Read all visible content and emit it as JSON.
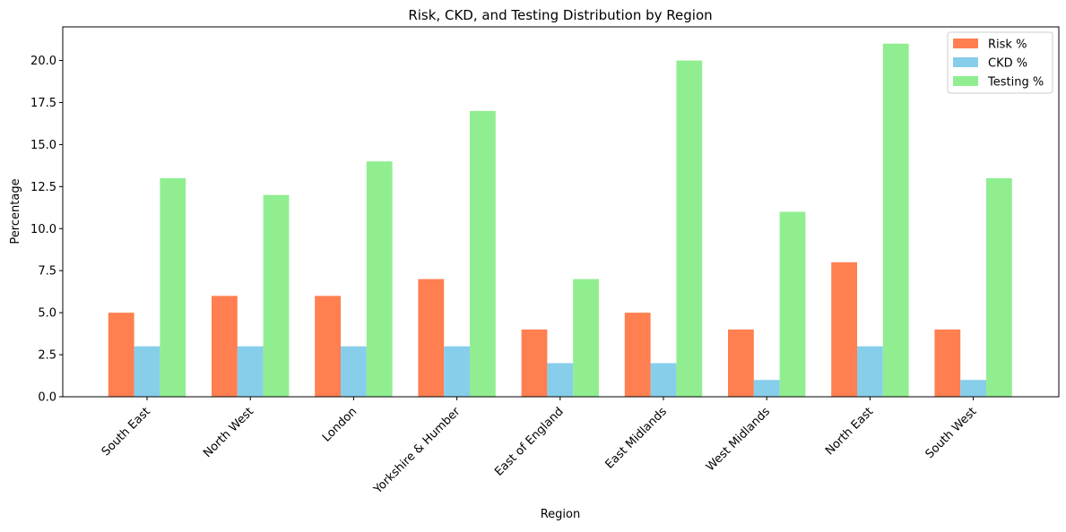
{
  "chart_data": {
    "type": "bar",
    "title": "Risk, CKD, and Testing Distribution by Region",
    "xlabel": "Region",
    "ylabel": "Percentage",
    "categories": [
      "South East",
      "North West",
      "London",
      "Yorkshire & Humber",
      "East of England",
      "East Midlands",
      "West Midlands",
      "North East",
      "South West"
    ],
    "series": [
      {
        "name": "Risk %",
        "color": "#ff7f50",
        "values": [
          5,
          6,
          6,
          7,
          4,
          5,
          4,
          8,
          4
        ]
      },
      {
        "name": "CKD %",
        "color": "#87ceeb",
        "values": [
          3,
          3,
          3,
          3,
          2,
          2,
          1,
          3,
          1
        ]
      },
      {
        "name": "Testing %",
        "color": "#90ee90",
        "values": [
          13,
          12,
          14,
          17,
          7,
          20,
          11,
          21,
          13
        ]
      }
    ],
    "ylim": [
      0,
      22
    ],
    "yticks": [
      0.0,
      2.5,
      5.0,
      7.5,
      10.0,
      12.5,
      15.0,
      17.5,
      20.0
    ],
    "ytick_labels": [
      "0.0",
      "2.5",
      "5.0",
      "7.5",
      "10.0",
      "12.5",
      "15.0",
      "17.5",
      "20.0"
    ],
    "grid": false,
    "legend_position": "top-right"
  }
}
